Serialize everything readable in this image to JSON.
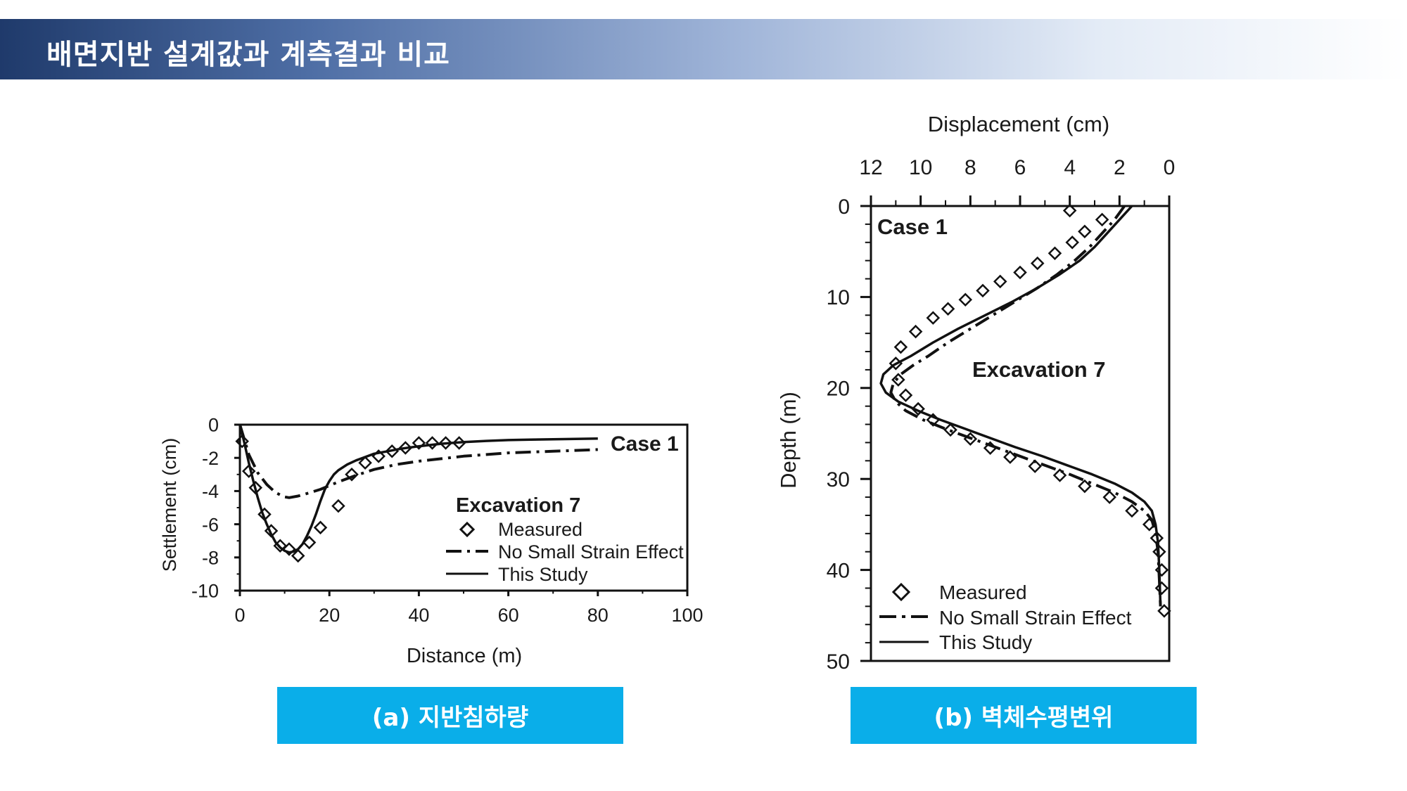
{
  "header": {
    "title": "배면지반 설계값과 계측결과 비교"
  },
  "captions": {
    "a": "(a) 지반침하량",
    "b": "(b) 벽체수평변위"
  },
  "chart_data": [
    {
      "type": "line",
      "case_label": "Case 1",
      "annotation": "Excavation 7",
      "xlabel": "Distance (m)",
      "ylabel": "Settlement (cm)",
      "xlim": [
        0,
        100
      ],
      "ylim": [
        -10,
        0
      ],
      "xticks": [
        0,
        20,
        40,
        60,
        80,
        100
      ],
      "yticks": [
        0,
        -2,
        -4,
        -6,
        -8,
        -10
      ],
      "legend": {
        "placement": "right",
        "entries": [
          "Measured",
          "No Small Strain Effect",
          "This Study"
        ]
      },
      "series": [
        {
          "name": "Measured",
          "style": "diamond",
          "x": [
            0.5,
            2.0,
            3.5,
            5.5,
            7.0,
            9.0,
            11.0,
            13.0,
            15.5,
            18.0,
            22.0,
            25.0,
            28.0,
            31.0,
            34.0,
            37.0,
            40.0,
            43.0,
            46.0,
            49.0
          ],
          "y": [
            -1.0,
            -2.8,
            -3.8,
            -5.4,
            -6.4,
            -7.3,
            -7.5,
            -7.9,
            -7.1,
            -6.2,
            -4.9,
            -3.0,
            -2.3,
            -1.9,
            -1.6,
            -1.4,
            -1.1,
            -1.1,
            -1.1,
            -1.1
          ]
        },
        {
          "name": "No Small Strain Effect",
          "style": "dashdot",
          "x": [
            0,
            2,
            4,
            6,
            8,
            10,
            11,
            13,
            15,
            18,
            22,
            26,
            30,
            35,
            40,
            45,
            50,
            55,
            60,
            65,
            70,
            75,
            80
          ],
          "y": [
            0,
            -1.8,
            -2.9,
            -3.6,
            -4.1,
            -4.35,
            -4.4,
            -4.3,
            -4.15,
            -3.9,
            -3.45,
            -3.05,
            -2.7,
            -2.4,
            -2.2,
            -2.05,
            -1.9,
            -1.8,
            -1.7,
            -1.65,
            -1.6,
            -1.55,
            -1.5
          ]
        },
        {
          "name": "This Study",
          "style": "solid",
          "x": [
            0,
            1,
            2,
            3,
            4,
            5,
            6,
            7,
            8,
            9,
            10,
            11,
            12,
            13,
            14,
            15,
            16,
            17,
            18,
            19,
            20,
            21,
            22,
            24,
            26,
            28,
            30,
            33,
            36,
            40,
            45,
            50,
            55,
            60,
            65,
            70,
            75,
            80
          ],
          "y": [
            0,
            -1.1,
            -2.3,
            -3.4,
            -4.4,
            -5.3,
            -6.0,
            -6.6,
            -7.1,
            -7.4,
            -7.6,
            -7.7,
            -7.65,
            -7.5,
            -7.2,
            -6.7,
            -6.1,
            -5.4,
            -4.6,
            -3.9,
            -3.4,
            -3.0,
            -2.75,
            -2.4,
            -2.15,
            -1.95,
            -1.75,
            -1.6,
            -1.45,
            -1.3,
            -1.15,
            -1.05,
            -0.98,
            -0.93,
            -0.9,
            -0.88,
            -0.86,
            -0.84
          ]
        }
      ]
    },
    {
      "type": "line",
      "case_label": "Case 1",
      "annotation": "Excavation 7",
      "xlabel": "Displacement (cm)",
      "ylabel": "Depth (m)",
      "xlim": [
        12,
        0
      ],
      "ylim": [
        50,
        0
      ],
      "xticks": [
        12,
        10,
        8,
        6,
        4,
        2,
        0
      ],
      "yticks": [
        0,
        10,
        20,
        30,
        40,
        50
      ],
      "legend": {
        "placement": "bottom-left",
        "entries": [
          "Measured",
          "No Small Strain Effect",
          "This Study"
        ]
      },
      "series": [
        {
          "name": "Measured",
          "style": "diamond",
          "x": [
            4.0,
            2.7,
            3.4,
            3.9,
            4.6,
            5.3,
            6.0,
            6.8,
            7.5,
            8.2,
            8.9,
            9.5,
            10.2,
            10.8,
            11.0,
            10.9,
            10.6,
            10.1,
            9.5,
            8.8,
            8.0,
            7.2,
            6.4,
            5.4,
            4.4,
            3.4,
            2.4,
            1.5,
            0.8,
            0.5,
            0.4,
            0.3,
            0.3,
            0.2
          ],
          "y": [
            0.5,
            1.5,
            2.8,
            4.0,
            5.2,
            6.3,
            7.3,
            8.3,
            9.3,
            10.3,
            11.3,
            12.3,
            13.8,
            15.5,
            17.3,
            19.1,
            20.8,
            22.3,
            23.5,
            24.6,
            25.6,
            26.6,
            27.6,
            28.6,
            29.6,
            30.8,
            32.0,
            33.5,
            35.0,
            36.5,
            38.0,
            40.0,
            42.0,
            44.5
          ]
        },
        {
          "name": "No Small Strain Effect",
          "style": "dashdot",
          "x": [
            1.8,
            2.2,
            2.7,
            3.2,
            3.8,
            4.5,
            5.3,
            6.2,
            7.1,
            8.0,
            8.9,
            9.7,
            10.3,
            10.8,
            11.1,
            11.2,
            11.0,
            10.6,
            9.9,
            9.0,
            8.0,
            7.0,
            6.0,
            5.0,
            4.0,
            3.1,
            2.2,
            1.5,
            1.0,
            0.7,
            0.55,
            0.45,
            0.4,
            0.35
          ],
          "y": [
            0,
            1.5,
            3.0,
            4.5,
            6.0,
            7.5,
            9.0,
            10.5,
            12.0,
            13.5,
            15.0,
            16.5,
            17.5,
            18.5,
            19.5,
            20.5,
            21.5,
            22.5,
            23.5,
            24.5,
            25.5,
            26.5,
            27.5,
            28.5,
            29.5,
            30.5,
            31.5,
            32.5,
            33.5,
            34.5,
            36.0,
            38.0,
            41.0,
            44.0
          ]
        },
        {
          "name": "This Study",
          "style": "solid",
          "x": [
            1.5,
            2.0,
            2.5,
            3.0,
            3.6,
            4.4,
            5.3,
            6.3,
            7.4,
            8.5,
            9.5,
            10.4,
            11.1,
            11.5,
            11.6,
            11.4,
            10.9,
            10.1,
            9.2,
            8.2,
            7.2,
            6.2,
            5.1,
            4.1,
            3.1,
            2.2,
            1.5,
            1.0,
            0.7,
            0.55,
            0.45,
            0.4,
            0.35
          ],
          "y": [
            0,
            1.5,
            3.0,
            4.5,
            6.0,
            7.5,
            9.0,
            10.5,
            12.0,
            13.5,
            15.0,
            16.5,
            17.5,
            18.5,
            19.5,
            20.5,
            21.5,
            22.5,
            23.5,
            24.5,
            25.5,
            26.5,
            27.5,
            28.5,
            29.5,
            30.5,
            31.5,
            32.5,
            33.5,
            35.0,
            37.0,
            40.0,
            44.0
          ]
        }
      ]
    }
  ]
}
